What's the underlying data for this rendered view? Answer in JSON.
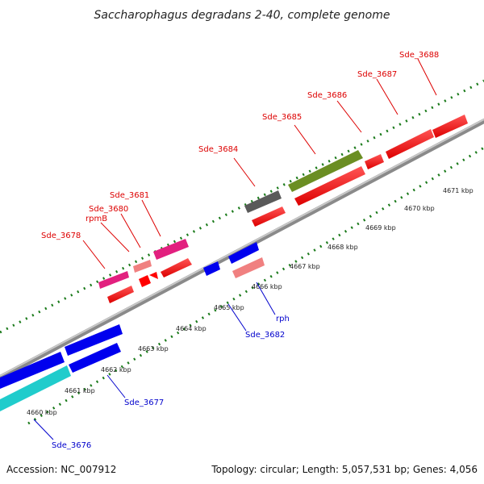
{
  "title": "Saccharophagus degradans 2-40, complete genome",
  "footer": {
    "accession": "Accession: NC_007912",
    "topology": "Topology: circular; Length: 5,057,531 bp; Genes: 4,056"
  },
  "scale_labels": [
    "4660 kbp",
    "4661 kbp",
    "4662 kbp",
    "4663 kbp",
    "4664 kbp",
    "4665 kbp",
    "4666 kbp",
    "4667 kbp",
    "4668 kbp",
    "4669 kbp",
    "4670 kbp",
    "4671 kbp"
  ],
  "forward_labels": [
    "Sde_3678",
    "rpmB",
    "Sde_3680",
    "Sde_3681",
    "Sde_3684",
    "Sde_3685",
    "Sde_3686",
    "Sde_3687",
    "Sde_3688"
  ],
  "reverse_labels": [
    "Sde_3676",
    "Sde_3677",
    "Sde_3682",
    "rph"
  ],
  "colors": {
    "red": "#ff0000",
    "pink": "#ff69b4",
    "magenta": "#e2207f",
    "salmon": "#f08080",
    "olive": "#6b8e23",
    "gray": "#5a5a5a",
    "blue": "#0000ee",
    "cyan": "#20cccc",
    "backbone": "#8a8a8a",
    "tickmarks": "#1a7a1a",
    "forward_label": "#dd0000",
    "reverse_label": "#0000cc"
  }
}
